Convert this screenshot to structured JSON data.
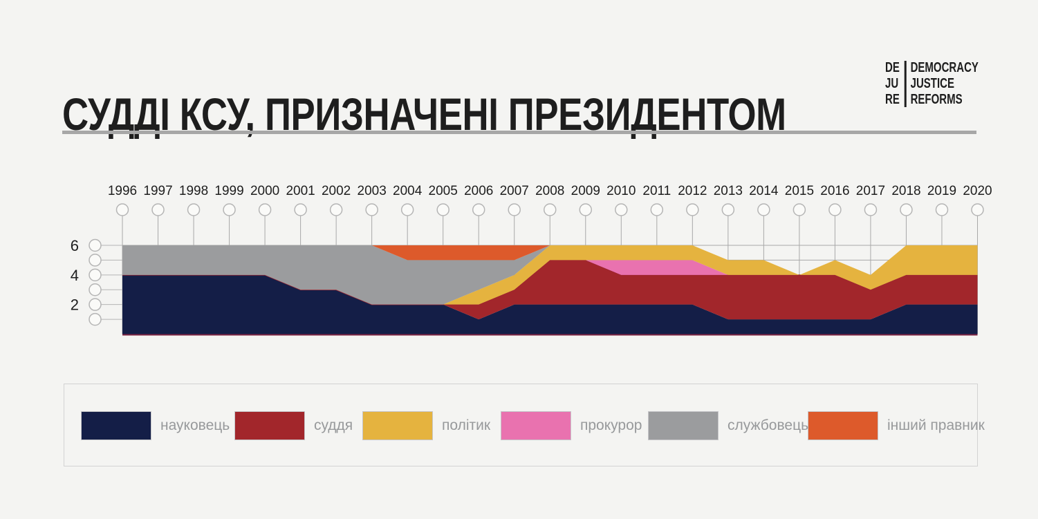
{
  "header": {
    "title": "СУДДІ КСУ, ПРИЗНАЧЕНІ ПРЕЗИДЕНТОМ",
    "logo": {
      "left": [
        "DE",
        "JU",
        "RE"
      ],
      "right": [
        "DEMOCRACY",
        "JUSTICE",
        "REFORMS"
      ]
    }
  },
  "theme": {
    "background": "#f4f4f2",
    "title_color": "#1e1e1e",
    "divider_color": "#a7a7a7",
    "logo_color": "#1d1d1d",
    "grid_color": "#a8a8a8",
    "circle_stroke": "#b5b5b5",
    "circle_fill": "#fafaf8",
    "tick_label_color": "#1e1e1e",
    "baseline_color": "#7e2443",
    "judge_edge_color": "#9c2430",
    "legend_border": "#d2d2d2",
    "legend_label_color": "#97999b"
  },
  "chart_data": {
    "type": "area",
    "stacked": true,
    "title": "СУДДІ КСУ, ПРИЗНАЧЕНІ ПРЕЗИДЕНТОМ",
    "x": [
      1996,
      1997,
      1998,
      1999,
      2000,
      2001,
      2002,
      2003,
      2004,
      2005,
      2006,
      2007,
      2008,
      2009,
      2010,
      2011,
      2012,
      2013,
      2014,
      2015,
      2016,
      2017,
      2018,
      2019,
      2020
    ],
    "ylim": [
      0,
      6
    ],
    "y_axis_circle_ticks": [
      1,
      2,
      3,
      4,
      5,
      6
    ],
    "y_axis_labeled_ticks": [
      2,
      4,
      6
    ],
    "grid": true,
    "legend_position": "bottom",
    "series": [
      {
        "key": "scholar",
        "name": "науковець",
        "color": "#141e47",
        "values": [
          4,
          4,
          4,
          4,
          4,
          3,
          3,
          2,
          2,
          2,
          1,
          2,
          2,
          2,
          2,
          2,
          2,
          1,
          1,
          1,
          1,
          1,
          2,
          2,
          2
        ]
      },
      {
        "key": "judge",
        "name": "суддя",
        "color": "#a2262b",
        "values": [
          0,
          0,
          0,
          0,
          0,
          0,
          0,
          0,
          0,
          0,
          1,
          1,
          3,
          3,
          2,
          2,
          2,
          3,
          3,
          3,
          3,
          2,
          2,
          2,
          2
        ]
      },
      {
        "key": "prosecutor",
        "name": "прокурор",
        "color": "#e972af",
        "values": [
          0,
          0,
          0,
          0,
          0,
          0,
          0,
          0,
          0,
          0,
          0,
          0,
          0,
          0,
          1,
          1,
          1,
          0,
          0,
          0,
          0,
          0,
          0,
          0,
          0
        ]
      },
      {
        "key": "politician",
        "name": "політик",
        "color": "#e5b33f",
        "values": [
          0,
          0,
          0,
          0,
          0,
          0,
          0,
          0,
          0,
          0,
          1,
          1,
          1,
          1,
          1,
          1,
          1,
          1,
          1,
          0,
          1,
          1,
          2,
          2,
          2
        ]
      },
      {
        "key": "civil-servant",
        "name": "службовець",
        "color": "#9b9c9e",
        "values": [
          2,
          2,
          2,
          2,
          2,
          3,
          3,
          4,
          3,
          3,
          2,
          1,
          0,
          0,
          0,
          0,
          0,
          0,
          0,
          0,
          0,
          0,
          0,
          0,
          0
        ]
      },
      {
        "key": "other-lawyer",
        "name": "інший правник",
        "color": "#dd5a2b",
        "values": [
          0,
          0,
          0,
          0,
          0,
          0,
          0,
          0,
          1,
          1,
          1,
          1,
          0,
          0,
          0,
          0,
          0,
          0,
          0,
          0,
          0,
          0,
          0,
          0,
          0
        ]
      }
    ],
    "legend_order": [
      "науковець",
      "суддя",
      "політик",
      "прокурор",
      "службовець",
      "інший правник"
    ]
  }
}
